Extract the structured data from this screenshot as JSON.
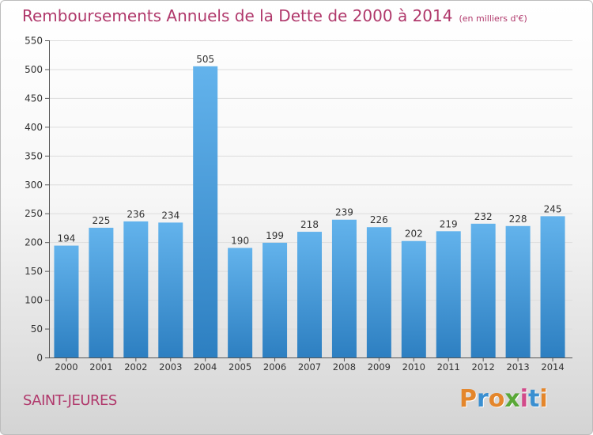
{
  "header": {
    "title": "Remboursements Annuels de la Dette de 2000 à 2014",
    "unit": "(en milliers d'€)"
  },
  "footer": {
    "place": "SAINT-JEURES",
    "logo": "Proxiti"
  },
  "colors": {
    "bar_top": "#63b3ec",
    "bar_bottom": "#2d7fc1",
    "title": "#b0386b",
    "logo": [
      "#e4862b",
      "#3a8fd1",
      "#e4862b",
      "#5aa838",
      "#d24a8a",
      "#3a8fd1",
      "#e4862b"
    ]
  },
  "chart_data": {
    "type": "bar",
    "title": "Remboursements Annuels de la Dette de 2000 à 2014",
    "subtitle": "(en milliers d'€)",
    "xlabel": "",
    "ylabel": "",
    "categories": [
      "2000",
      "2001",
      "2002",
      "2003",
      "2004",
      "2005",
      "2006",
      "2007",
      "2008",
      "2009",
      "2010",
      "2011",
      "2012",
      "2013",
      "2014"
    ],
    "values": [
      194,
      225,
      236,
      234,
      505,
      190,
      199,
      218,
      239,
      226,
      202,
      219,
      232,
      228,
      245
    ],
    "ylim": [
      0,
      550
    ],
    "yticks": [
      0,
      50,
      100,
      150,
      200,
      250,
      300,
      350,
      400,
      450,
      500,
      550
    ],
    "grid": true,
    "data_labels": true
  }
}
